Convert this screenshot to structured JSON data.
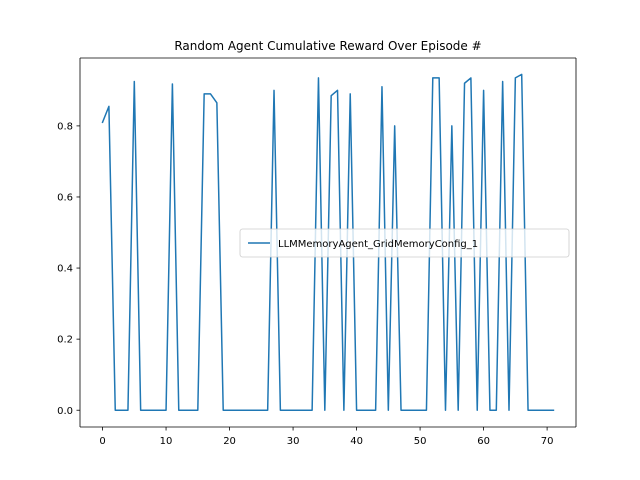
{
  "chart_data": {
    "type": "line",
    "title": "Random Agent Cumulative Reward Over Episode #",
    "xlabel": "",
    "ylabel": "",
    "xlim": [
      -3.55,
      74.55
    ],
    "ylim": [
      -0.0472,
      0.991
    ],
    "x_ticks": [
      0,
      10,
      20,
      30,
      40,
      50,
      60,
      70
    ],
    "y_ticks": [
      0.0,
      0.2,
      0.4,
      0.6,
      0.8
    ],
    "x_tick_labels": [
      "0",
      "10",
      "20",
      "30",
      "40",
      "50",
      "60",
      "70"
    ],
    "y_tick_labels": [
      "0.0",
      "0.2",
      "0.4",
      "0.6",
      "0.8"
    ],
    "grid": false,
    "legend_position": "center-right",
    "series": [
      {
        "name": "LLMMemoryAgent_GridMemoryConfig_1",
        "color": "#1f77b4",
        "x": [
          0,
          1,
          2,
          3,
          4,
          5,
          6,
          7,
          8,
          9,
          10,
          11,
          12,
          13,
          14,
          15,
          16,
          17,
          18,
          19,
          20,
          21,
          22,
          23,
          24,
          25,
          26,
          27,
          28,
          29,
          30,
          31,
          32,
          33,
          34,
          35,
          36,
          37,
          38,
          39,
          40,
          41,
          42,
          43,
          44,
          45,
          46,
          47,
          48,
          49,
          50,
          51,
          52,
          53,
          54,
          55,
          56,
          57,
          58,
          59,
          60,
          61,
          62,
          63,
          64,
          65,
          66,
          67,
          68,
          69,
          70,
          71
        ],
        "values": [
          0.81,
          0.855,
          0,
          0,
          0,
          0.925,
          0,
          0,
          0,
          0,
          0,
          0.918,
          0,
          0,
          0,
          0,
          0.89,
          0.89,
          0.865,
          0,
          0,
          0,
          0,
          0,
          0,
          0,
          0,
          0.9,
          0,
          0,
          0,
          0,
          0,
          0,
          0.935,
          0,
          0.885,
          0.9,
          0,
          0.89,
          0,
          0,
          0,
          0,
          0.91,
          0,
          0.8,
          0,
          0,
          0,
          0,
          0,
          0.935,
          0.935,
          0,
          0.8,
          0,
          0.92,
          0.935,
          0,
          0.9,
          0,
          0,
          0.925,
          0,
          0.935,
          0.945,
          0,
          0,
          0,
          0,
          0
        ]
      }
    ]
  }
}
